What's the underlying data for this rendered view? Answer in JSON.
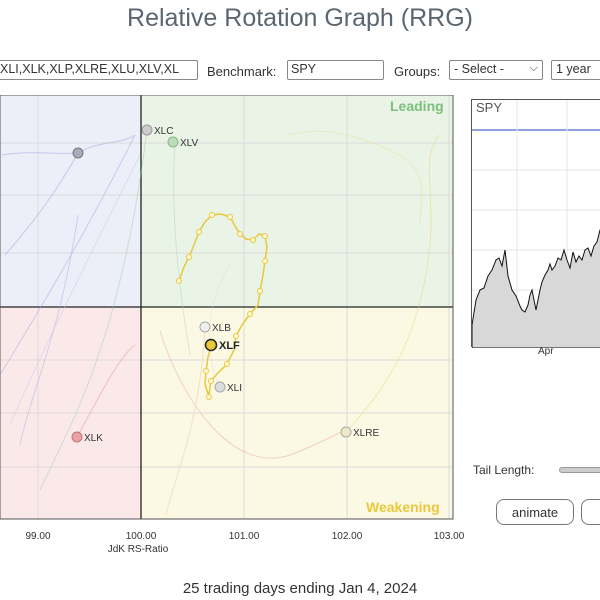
{
  "header": {
    "title": "Relative Rotation Graph (RRG)"
  },
  "toolbar": {
    "symbols_value": "XLI,XLK,XLP,XLRE,XLU,XLV,XL",
    "benchmark_label": "Benchmark:",
    "benchmark_value": "SPY",
    "groups_label": "Groups:",
    "groups_value": "- Select -",
    "period_value": "1 year"
  },
  "rrg": {
    "quadrants": {
      "leading": "Leading",
      "weakening": "Weakening",
      "colors": {
        "leading": "#e9f3e6",
        "weakening": "#fbf8e4",
        "lagging": "#fbe9ea",
        "improving": "#eceef8"
      }
    },
    "x_axis": {
      "label": "JdK RS-Ratio",
      "ticks": [
        "99.00",
        "100.00",
        "101.00",
        "102.00",
        "103.00"
      ]
    },
    "highlighted": {
      "symbol": "XLF",
      "color": "#e8c93c"
    },
    "faded_labels": [
      "XLC",
      "XLV",
      "XLB",
      "XLI",
      "XLRE",
      "XLK"
    ]
  },
  "mini_chart": {
    "symbol": "SPY",
    "month_label": "Apr"
  },
  "controls": {
    "tail_length_label": "Tail Length:",
    "animate_label": "animate"
  },
  "footer": {
    "text": "25 trading days ending Jan 4, 2024"
  }
}
